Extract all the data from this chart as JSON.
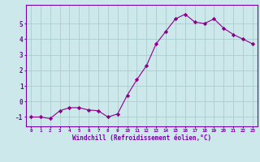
{
  "x": [
    0,
    1,
    2,
    3,
    4,
    5,
    6,
    7,
    8,
    9,
    10,
    11,
    12,
    13,
    14,
    15,
    16,
    17,
    18,
    19,
    20,
    21,
    22,
    23
  ],
  "y": [
    -1.0,
    -1.0,
    -1.1,
    -0.6,
    -0.4,
    -0.4,
    -0.55,
    -0.6,
    -1.0,
    -0.8,
    0.4,
    1.4,
    2.3,
    3.7,
    4.5,
    5.3,
    5.6,
    5.1,
    5.0,
    5.3,
    4.7,
    4.3,
    4.0,
    3.7
  ],
  "line_color": "#8B008B",
  "marker": "D",
  "marker_size": 2.2,
  "bg_color": "#cce8ea",
  "grid_color": "#aacdd0",
  "xlabel": "Windchill (Refroidissement éolien,°C)",
  "xlabel_color": "#7700aa",
  "tick_color": "#7700aa",
  "xlim": [
    -0.5,
    23.5
  ],
  "ylim": [
    -1.6,
    6.2
  ],
  "yticks": [
    -1,
    0,
    1,
    2,
    3,
    4,
    5
  ],
  "xticks": [
    0,
    1,
    2,
    3,
    4,
    5,
    6,
    7,
    8,
    9,
    10,
    11,
    12,
    13,
    14,
    15,
    16,
    17,
    18,
    19,
    20,
    21,
    22,
    23
  ],
  "xtick_labels": [
    "0",
    "1",
    "2",
    "3",
    "4",
    "5",
    "6",
    "7",
    "8",
    "9",
    "10",
    "11",
    "12",
    "13",
    "14",
    "15",
    "16",
    "17",
    "18",
    "19",
    "20",
    "21",
    "22",
    "23"
  ],
  "spine_color": "#7700aa"
}
